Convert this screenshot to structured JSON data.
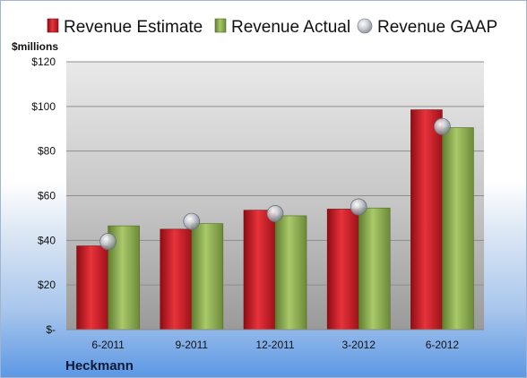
{
  "chart_data": {
    "type": "bar",
    "company": "Heckmann",
    "unit_label": "$millions",
    "categories": [
      "6-2011",
      "9-2011",
      "12-2011",
      "3-2012",
      "6-2012"
    ],
    "series": [
      {
        "name": "Revenue Estimate",
        "kind": "bar",
        "color": "#d0212b",
        "values": [
          37.5,
          45,
          53.5,
          54,
          98.5
        ]
      },
      {
        "name": "Revenue Actual",
        "kind": "bar",
        "color": "#8fb054",
        "values": [
          46.5,
          47.5,
          51,
          54.5,
          90.5
        ]
      },
      {
        "name": "Revenue GAAP",
        "kind": "marker",
        "color": "#b8bcc4",
        "values": [
          39.5,
          48.5,
          52,
          55,
          91
        ]
      }
    ],
    "y_ticks": [
      "$-",
      "$20",
      "$40",
      "$60",
      "$80",
      "$100",
      "$120"
    ],
    "ylim": [
      0,
      120
    ],
    "grid": true,
    "legend_position": "top"
  }
}
